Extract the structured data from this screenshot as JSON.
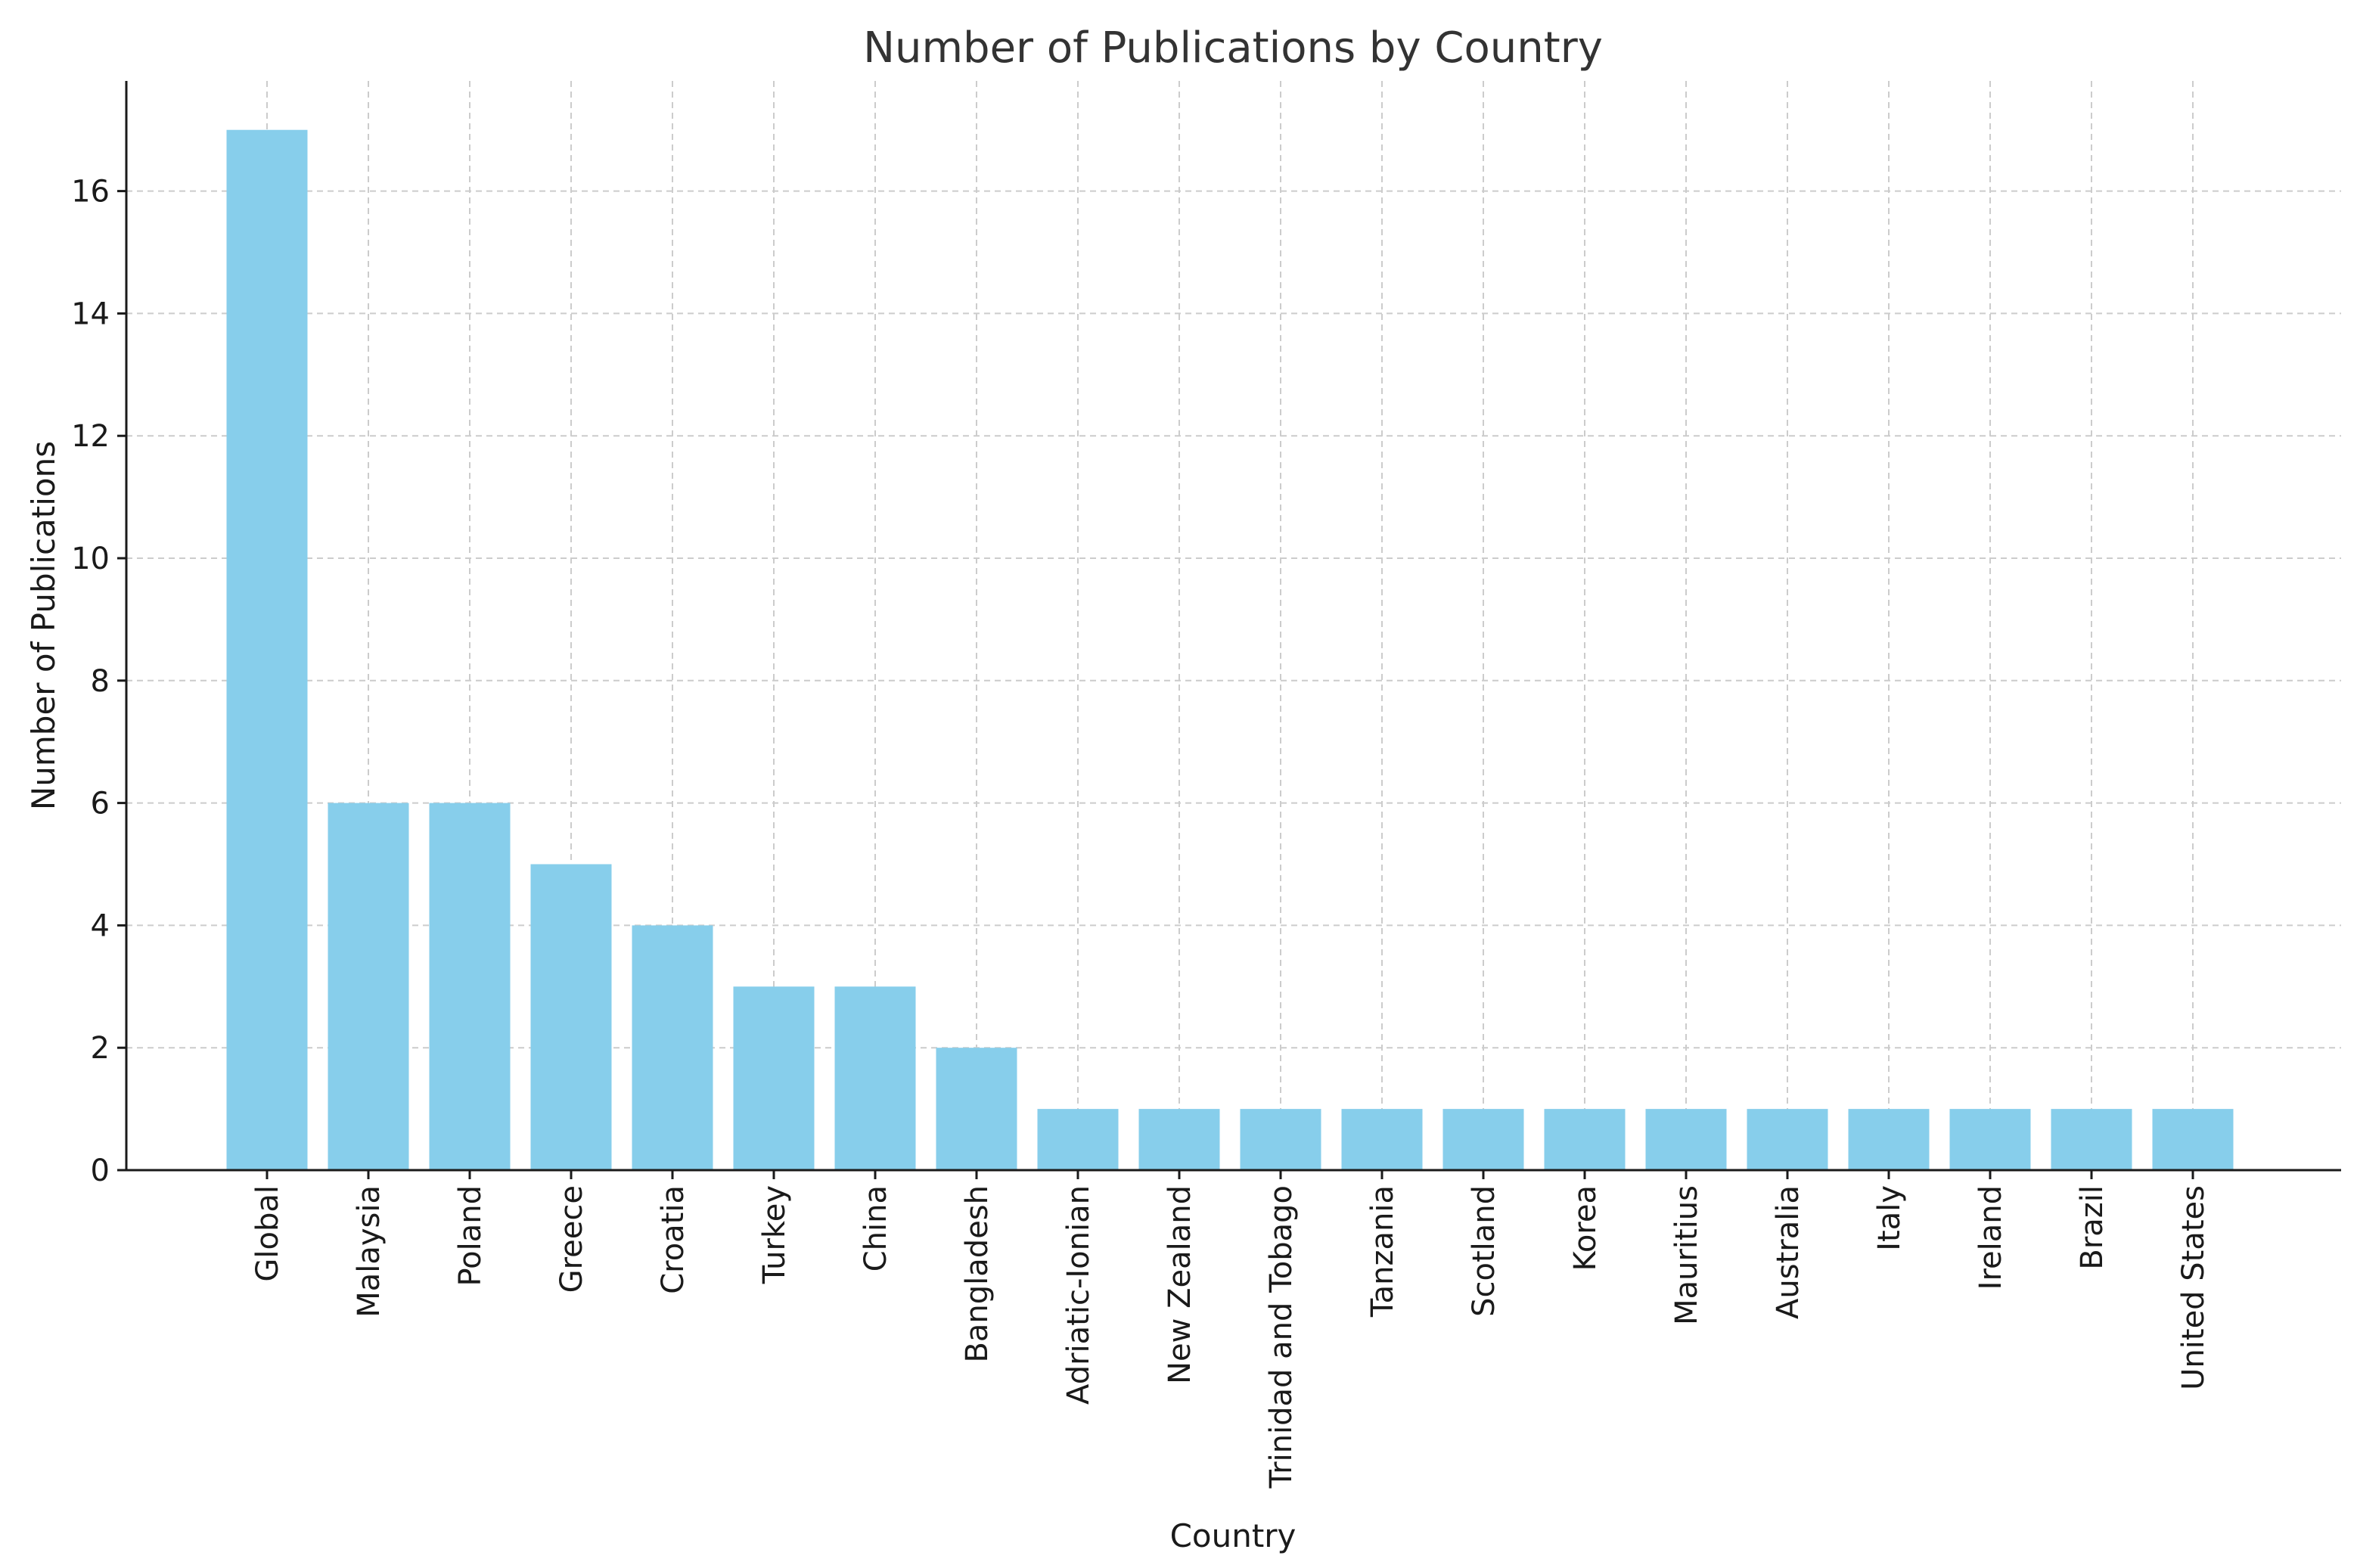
{
  "chart_data": {
    "type": "bar",
    "title": "Number of Publications by Country",
    "xlabel": "Country",
    "ylabel": "Number of Publications",
    "categories": [
      "Global",
      "Malaysia",
      "Poland",
      "Greece",
      "Croatia",
      "Turkey",
      "China",
      "Bangladesh",
      "Adriatic-Ionian",
      "New Zealand",
      "Trinidad and Tobago",
      "Tanzania",
      "Scotland",
      "Korea",
      "Mauritius",
      "Australia",
      "Italy",
      "Ireland",
      "Brazil",
      "United States"
    ],
    "values": [
      17,
      6,
      6,
      5,
      4,
      3,
      3,
      2,
      1,
      1,
      1,
      1,
      1,
      1,
      1,
      1,
      1,
      1,
      1,
      1
    ],
    "ylim": [
      0,
      17.8
    ],
    "yticks": [
      0,
      2,
      4,
      6,
      8,
      10,
      12,
      14,
      16
    ],
    "grid": true,
    "bar_color": "#87ceeb"
  }
}
